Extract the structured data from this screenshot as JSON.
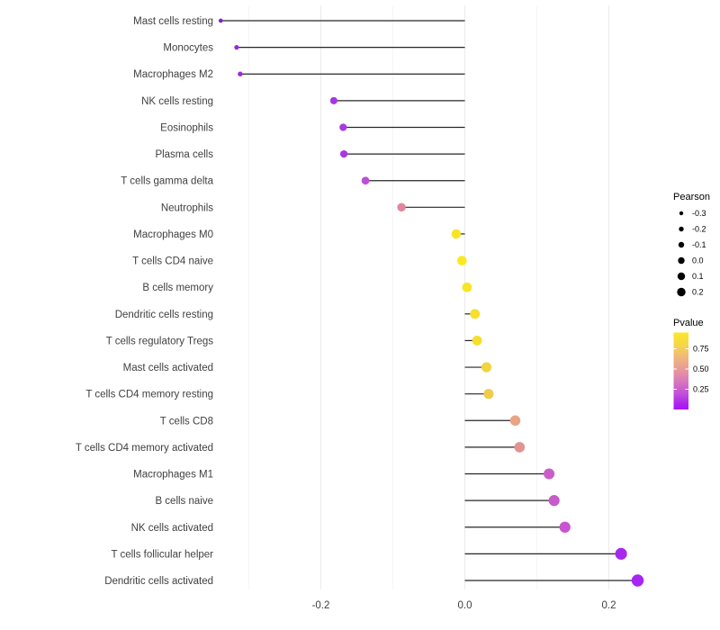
{
  "chart_data": {
    "type": "scatter",
    "subtype": "lollipop",
    "orientation": "horizontal",
    "title": "",
    "xlabel": "",
    "ylabel": "",
    "xlim": [
      -0.365,
      0.3
    ],
    "x_ticks": [
      -0.2,
      0,
      0.2
    ],
    "x_tick_labels": [
      "-0.2",
      "0.0",
      "0.2"
    ],
    "x_minor_ticks": [
      -0.3,
      -0.1,
      0.1
    ],
    "grid": "vertical-only",
    "baseline_x": 0,
    "stem_color": "#262626",
    "axis_text_color": "#404040",
    "points": [
      {
        "label": "Mast cells resting",
        "pearson": -0.339,
        "color": "#7d22c9"
      },
      {
        "label": "Monocytes",
        "pearson": -0.317,
        "color": "#9827e2"
      },
      {
        "label": "Macrophages M2",
        "pearson": -0.312,
        "color": "#9c27e0"
      },
      {
        "label": "NK cells resting",
        "pearson": -0.182,
        "color": "#a735e2"
      },
      {
        "label": "Eosinophils",
        "pearson": -0.169,
        "color": "#ab3ade"
      },
      {
        "label": "Plasma cells",
        "pearson": -0.168,
        "color": "#ab38df"
      },
      {
        "label": "T cells gamma delta",
        "pearson": -0.138,
        "color": "#bc4fd4"
      },
      {
        "label": "Neutrophils",
        "pearson": -0.088,
        "color": "#e0879c"
      },
      {
        "label": "Macrophages M0",
        "pearson": -0.012,
        "color": "#f8e426"
      },
      {
        "label": "T cells CD4 naive",
        "pearson": -0.004,
        "color": "#fae821"
      },
      {
        "label": "B cells memory",
        "pearson": 0.003,
        "color": "#f8e524"
      },
      {
        "label": "Dendritic cells resting",
        "pearson": 0.014,
        "color": "#f6df2d"
      },
      {
        "label": "T cells regulatory  Tregs",
        "pearson": 0.017,
        "color": "#f6de2c"
      },
      {
        "label": "Mast cells activated",
        "pearson": 0.03,
        "color": "#f2d43c"
      },
      {
        "label": "T cells CD4 memory resting",
        "pearson": 0.033,
        "color": "#efcc4b"
      },
      {
        "label": "T cells CD8",
        "pearson": 0.07,
        "color": "#e8a584"
      },
      {
        "label": "T cells CD4 memory activated",
        "pearson": 0.076,
        "color": "#e29490"
      },
      {
        "label": "Macrophages M1",
        "pearson": 0.117,
        "color": "#c95fc6"
      },
      {
        "label": "B cells naive",
        "pearson": 0.124,
        "color": "#c75bc9"
      },
      {
        "label": "NK cells activated",
        "pearson": 0.139,
        "color": "#c854cf"
      },
      {
        "label": "T cells follicular helper",
        "pearson": 0.217,
        "color": "#a829ee"
      },
      {
        "label": "Dendritic cells activated",
        "pearson": 0.24,
        "color": "#a824f2"
      }
    ],
    "legends": {
      "size": {
        "title": "Pearson",
        "items": [
          "-0.3",
          "-0.2",
          "-0.1",
          "0.0",
          "0.1",
          "0.2"
        ],
        "dot_color": "#000000"
      },
      "color": {
        "title": "Pvalue",
        "tick_labels": [
          "0.75",
          "0.50",
          "0.25"
        ],
        "range": [
          0,
          0.95
        ],
        "gradient": [
          {
            "p": 0.95,
            "color": "#fce724"
          },
          {
            "p": 0.8,
            "color": "#f6d649"
          },
          {
            "p": 0.65,
            "color": "#f0b87b"
          },
          {
            "p": 0.5,
            "color": "#e89a98"
          },
          {
            "p": 0.35,
            "color": "#d878bd"
          },
          {
            "p": 0.2,
            "color": "#c352d8"
          },
          {
            "p": 0.05,
            "color": "#aa1df2"
          },
          {
            "p": 0.0,
            "color": "#a716f5"
          }
        ]
      }
    }
  }
}
